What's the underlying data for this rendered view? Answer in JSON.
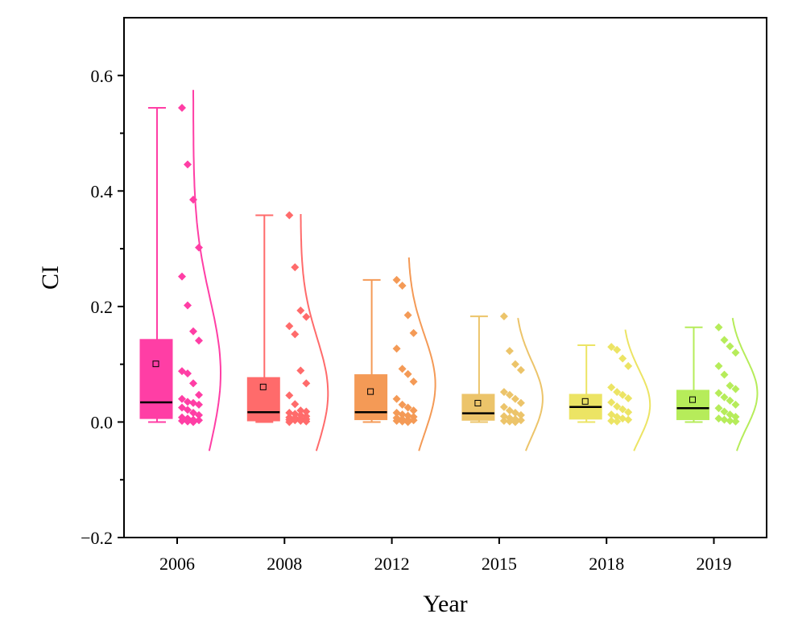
{
  "chart_data": {
    "type": "box-raincloud",
    "title": "",
    "xlabel": "Year",
    "ylabel": "CI",
    "ylim": [
      -0.2,
      0.7
    ],
    "yticks": [
      -0.2,
      0.0,
      0.2,
      0.4,
      0.6
    ],
    "ytick_labels": [
      "−0.2",
      "0.0",
      "0.2",
      "0.4",
      "0.6"
    ],
    "categories": [
      "2006",
      "2008",
      "2012",
      "2015",
      "2018",
      "2019"
    ],
    "grid": false,
    "legend": "none",
    "groups": [
      {
        "category": "2006",
        "color": "#ff3ea5",
        "whisker_low": 0.0,
        "q1": 0.006,
        "median": 0.034,
        "q3": 0.143,
        "whisker_high": 0.544,
        "mean": 0.1,
        "points": [
          0.544,
          0.446,
          0.385,
          0.302,
          0.252,
          0.202,
          0.157,
          0.141,
          0.088,
          0.084,
          0.067,
          0.047,
          0.04,
          0.035,
          0.033,
          0.03,
          0.025,
          0.021,
          0.016,
          0.012,
          0.008,
          0.006,
          0.004,
          0.003,
          0.002,
          0.001,
          0.0
        ],
        "density_mean": 0.085,
        "density_sd": 0.13,
        "density_max": 0.575
      },
      {
        "category": "2008",
        "color": "#ff6b6b",
        "whisker_low": 0.0,
        "q1": 0.002,
        "median": 0.017,
        "q3": 0.077,
        "whisker_high": 0.358,
        "mean": 0.06,
        "points": [
          0.358,
          0.268,
          0.193,
          0.182,
          0.166,
          0.152,
          0.089,
          0.067,
          0.046,
          0.031,
          0.02,
          0.018,
          0.016,
          0.014,
          0.012,
          0.01,
          0.008,
          0.007,
          0.006,
          0.005,
          0.004,
          0.003,
          0.002,
          0.001,
          0.0
        ],
        "density_mean": 0.05,
        "density_sd": 0.095,
        "density_max": 0.36
      },
      {
        "category": "2012",
        "color": "#f49a56",
        "whisker_low": 0.0,
        "q1": 0.004,
        "median": 0.017,
        "q3": 0.082,
        "whisker_high": 0.246,
        "mean": 0.052,
        "points": [
          0.246,
          0.236,
          0.185,
          0.154,
          0.127,
          0.092,
          0.083,
          0.07,
          0.04,
          0.03,
          0.025,
          0.02,
          0.016,
          0.013,
          0.011,
          0.009,
          0.007,
          0.005,
          0.004,
          0.003,
          0.002,
          0.001,
          0.0
        ],
        "density_mean": 0.065,
        "density_sd": 0.085,
        "density_max": 0.285
      },
      {
        "category": "2015",
        "color": "#ecc46a",
        "whisker_low": 0.0,
        "q1": 0.003,
        "median": 0.015,
        "q3": 0.048,
        "whisker_high": 0.183,
        "mean": 0.032,
        "points": [
          0.183,
          0.123,
          0.1,
          0.09,
          0.052,
          0.047,
          0.04,
          0.033,
          0.026,
          0.02,
          0.016,
          0.012,
          0.01,
          0.007,
          0.005,
          0.003,
          0.002,
          0.001,
          0.0
        ],
        "density_mean": 0.04,
        "density_sd": 0.065,
        "density_max": 0.18
      },
      {
        "category": "2018",
        "color": "#ece464",
        "whisker_low": 0.0,
        "q1": 0.005,
        "median": 0.026,
        "q3": 0.048,
        "whisker_high": 0.133,
        "mean": 0.035,
        "points": [
          0.13,
          0.125,
          0.11,
          0.097,
          0.06,
          0.052,
          0.047,
          0.041,
          0.034,
          0.027,
          0.022,
          0.017,
          0.013,
          0.009,
          0.006,
          0.004,
          0.002,
          0.001
        ],
        "density_mean": 0.03,
        "density_sd": 0.06,
        "density_max": 0.16
      },
      {
        "category": "2019",
        "color": "#b6ec5a",
        "whisker_low": 0.0,
        "q1": 0.004,
        "median": 0.024,
        "q3": 0.055,
        "whisker_high": 0.164,
        "mean": 0.038,
        "points": [
          0.164,
          0.142,
          0.131,
          0.12,
          0.097,
          0.082,
          0.063,
          0.057,
          0.05,
          0.043,
          0.037,
          0.03,
          0.024,
          0.018,
          0.013,
          0.009,
          0.006,
          0.004,
          0.002,
          0.001
        ],
        "density_mean": 0.05,
        "density_sd": 0.06,
        "density_max": 0.18
      }
    ]
  }
}
